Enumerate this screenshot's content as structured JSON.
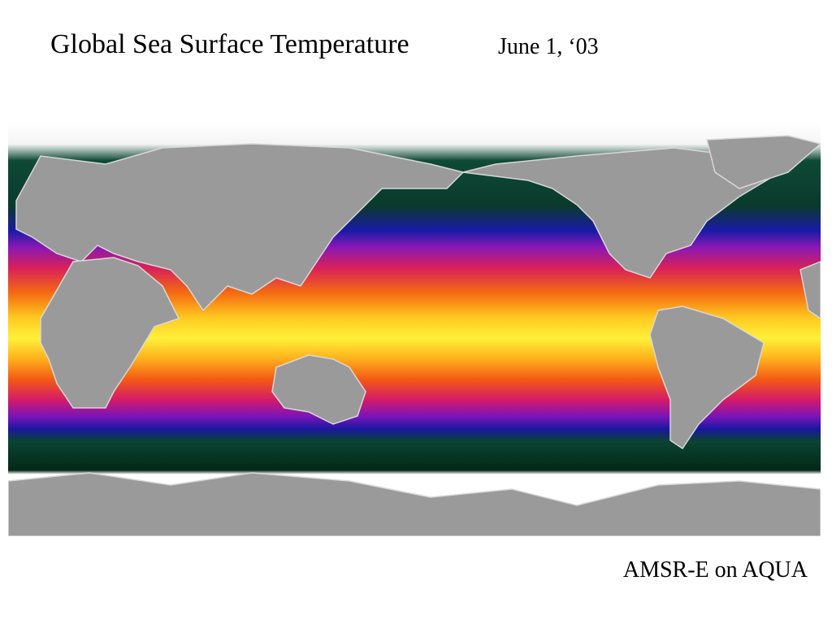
{
  "header": {
    "title": "Global Sea Surface Temperature",
    "date": "June 1, ‘03"
  },
  "caption": "AMSR-E on AQUA"
}
